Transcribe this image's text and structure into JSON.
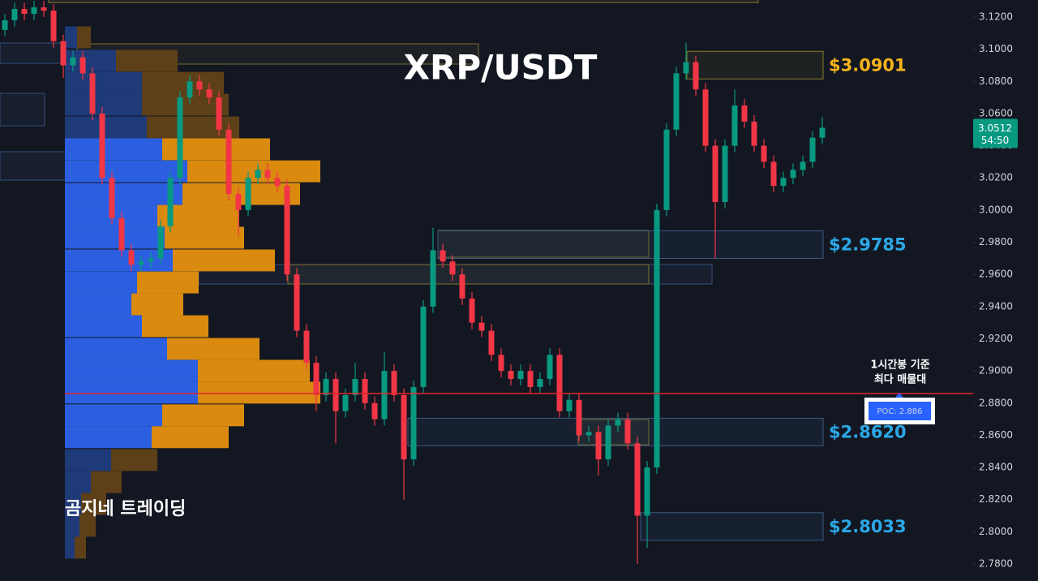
{
  "chart_data": {
    "type": "candlestick",
    "title": "XRP/USDT",
    "watermark": "곰지네 트레이딩",
    "annotation": [
      "1시간봉 기준",
      "최다 매물대"
    ],
    "up_color": "#089981",
    "down_color": "#f23645",
    "open": [
      3.112,
      3.118,
      3.125,
      3.122,
      3.126,
      3.124,
      3.105,
      3.09,
      3.095,
      3.085,
      3.06,
      3.02,
      2.995,
      2.975,
      2.966,
      2.968,
      2.97,
      2.99,
      3.02,
      3.07,
      3.08,
      3.075,
      3.07,
      3.05,
      3.01,
      3.0,
      3.02,
      3.025,
      3.02,
      3.015,
      2.96,
      2.925,
      2.905,
      2.885,
      2.895,
      2.875,
      2.885,
      2.895,
      2.88,
      2.87,
      2.9,
      2.885,
      2.845,
      2.89,
      2.94,
      2.975,
      2.968,
      2.96,
      2.945,
      2.93,
      2.925,
      2.91,
      2.9,
      2.895,
      2.9,
      2.89,
      2.895,
      2.91,
      2.875,
      2.882,
      2.86,
      2.862,
      2.845,
      2.866,
      2.87,
      2.855,
      2.81,
      2.84,
      3.0,
      3.05,
      3.085,
      3.092,
      3.075,
      3.04,
      3.005,
      3.04,
      3.065,
      3.055,
      3.04,
      3.03,
      3.015,
      3.02,
      3.025,
      3.03,
      3.045
    ],
    "high": [
      3.122,
      3.129,
      3.129,
      3.13,
      3.13,
      3.128,
      3.109,
      3.099,
      3.099,
      3.089,
      3.064,
      3.024,
      2.999,
      2.979,
      2.972,
      2.974,
      2.994,
      3.024,
      3.074,
      3.084,
      3.084,
      3.079,
      3.074,
      3.054,
      3.014,
      3.024,
      3.029,
      3.029,
      3.024,
      3.019,
      2.964,
      2.929,
      2.909,
      2.899,
      2.899,
      2.889,
      2.905,
      2.899,
      2.884,
      2.912,
      2.904,
      2.889,
      2.894,
      2.944,
      2.989,
      2.979,
      2.972,
      2.964,
      2.949,
      2.934,
      2.929,
      2.914,
      2.904,
      2.904,
      2.904,
      2.899,
      2.914,
      2.914,
      2.886,
      2.886,
      2.866,
      2.866,
      2.87,
      2.874,
      2.874,
      2.859,
      2.844,
      3.004,
      3.054,
      3.089,
      3.104,
      3.096,
      3.079,
      3.044,
      3.044,
      3.075,
      3.069,
      3.059,
      3.044,
      3.034,
      3.024,
      3.029,
      3.034,
      3.049,
      3.058
    ],
    "low": [
      3.108,
      3.114,
      3.118,
      3.118,
      3.12,
      3.101,
      3.082,
      3.086,
      3.081,
      3.056,
      3.016,
      2.991,
      2.971,
      2.962,
      2.962,
      2.964,
      2.966,
      2.986,
      3.016,
      3.066,
      3.071,
      3.066,
      3.046,
      3.006,
      2.984,
      2.996,
      3.016,
      3.016,
      3.011,
      2.956,
      2.921,
      2.901,
      2.875,
      2.881,
      2.855,
      2.871,
      2.881,
      2.876,
      2.866,
      2.866,
      2.881,
      2.82,
      2.841,
      2.886,
      2.936,
      2.964,
      2.956,
      2.941,
      2.926,
      2.921,
      2.906,
      2.896,
      2.891,
      2.891,
      2.886,
      2.886,
      2.891,
      2.871,
      2.871,
      2.856,
      2.856,
      2.835,
      2.841,
      2.862,
      2.851,
      2.78,
      2.79,
      2.836,
      2.996,
      3.046,
      3.081,
      3.071,
      3.036,
      2.97,
      3.001,
      3.036,
      3.051,
      3.036,
      3.026,
      3.011,
      3.011,
      3.016,
      3.021,
      3.026,
      3.041
    ],
    "close": [
      3.118,
      3.125,
      3.122,
      3.126,
      3.124,
      3.105,
      3.09,
      3.095,
      3.085,
      3.06,
      3.02,
      2.995,
      2.975,
      2.966,
      2.968,
      2.97,
      2.99,
      3.02,
      3.07,
      3.08,
      3.075,
      3.07,
      3.05,
      3.01,
      3.0,
      3.02,
      3.025,
      3.02,
      3.015,
      2.96,
      2.925,
      2.905,
      2.885,
      2.895,
      2.875,
      2.885,
      2.895,
      2.88,
      2.87,
      2.9,
      2.885,
      2.845,
      2.89,
      2.94,
      2.975,
      2.968,
      2.96,
      2.945,
      2.93,
      2.925,
      2.91,
      2.9,
      2.895,
      2.9,
      2.89,
      2.895,
      2.91,
      2.875,
      2.882,
      2.86,
      2.862,
      2.845,
      2.866,
      2.87,
      2.855,
      2.81,
      2.84,
      3.0,
      3.05,
      3.085,
      3.092,
      3.075,
      3.04,
      3.005,
      3.04,
      3.065,
      3.055,
      3.04,
      3.03,
      3.015,
      3.02,
      3.025,
      3.03,
      3.045,
      3.0512
    ],
    "ylim": [
      2.7694,
      3.1306
    ],
    "yticks": [
      {
        "value": 3.12,
        "label": "3.1200"
      },
      {
        "value": 3.1,
        "label": "3.1000"
      },
      {
        "value": 3.08,
        "label": "3.0800"
      },
      {
        "value": 3.06,
        "label": "3.0600"
      },
      {
        "value": 3.04,
        "label": "3.0400"
      },
      {
        "value": 3.02,
        "label": "3.0200"
      },
      {
        "value": 3.0,
        "label": "3.0000"
      },
      {
        "value": 2.98,
        "label": "2.9800"
      },
      {
        "value": 2.96,
        "label": "2.9600"
      },
      {
        "value": 2.94,
        "label": "2.9400"
      },
      {
        "value": 2.92,
        "label": "2.9200"
      },
      {
        "value": 2.9,
        "label": "2.9000"
      },
      {
        "value": 2.88,
        "label": "2.8800"
      },
      {
        "value": 2.86,
        "label": "2.8600"
      },
      {
        "value": 2.84,
        "label": "2.8400"
      },
      {
        "value": 2.82,
        "label": "2.8200"
      },
      {
        "value": 2.8,
        "label": "2.8000"
      },
      {
        "value": 2.78,
        "label": "2.7800"
      }
    ],
    "last_price": 3.0512,
    "countdown": "54:50",
    "levels": [
      {
        "value": 3.0901,
        "label": "$3.0901",
        "color": "#f5b31c"
      },
      {
        "value": 2.9785,
        "label": "$2.9785",
        "color": "#2ba8e6"
      },
      {
        "value": 2.862,
        "label": "$2.8620",
        "color": "#2ba8e6"
      },
      {
        "value": 2.8033,
        "label": "$2.8033",
        "color": "#2ba8e6"
      }
    ],
    "poc": {
      "value": 2.886,
      "label": "POC: 2.886",
      "color": "#e0262b"
    },
    "volume_profile": {
      "prices": [
        3.1074,
        3.0928,
        3.0791,
        3.0655,
        3.0514,
        3.0378,
        3.0241,
        3.01,
        2.9964,
        2.9828,
        2.9687,
        2.955,
        2.9414,
        2.9278,
        2.9137,
        2.9001,
        2.8865,
        2.8724,
        2.8588,
        2.8446,
        2.8309,
        2.8173,
        2.8037,
        2.7901
      ],
      "buy": [
        15,
        63,
        95,
        95,
        101,
        120,
        151,
        145,
        114,
        123,
        133,
        89,
        82,
        95,
        126,
        164,
        164,
        120,
        107,
        57,
        32,
        20,
        18,
        12
      ],
      "sell": [
        17,
        76,
        101,
        107,
        114,
        133,
        164,
        145,
        101,
        98,
        126,
        76,
        64,
        82,
        114,
        138,
        151,
        101,
        95,
        57,
        38,
        31,
        20,
        14
      ],
      "value_area": [
        2.852,
        3.044
      ],
      "buy_color": "#2b5fe0",
      "sell_color": "#d98a0f",
      "buy_color_outside": "#1f3a78",
      "sell_color_outside": "#5e4018"
    }
  }
}
